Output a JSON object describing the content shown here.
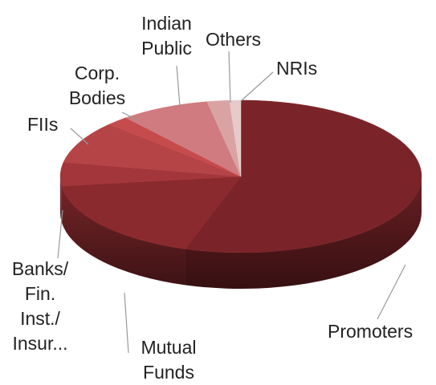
{
  "chart_data": {
    "type": "pie3d",
    "categories": [
      "Promoters",
      "Mutual Funds",
      "Banks/ Fin. Inst./ Insur...",
      "FIIs",
      "Corp. Bodies",
      "Indian Public",
      "Others",
      "NRIs"
    ],
    "values": [
      55,
      18,
      5,
      9,
      2,
      8,
      2,
      1
    ],
    "colors": [
      "#7a2429",
      "#8a2a2f",
      "#a3363a",
      "#b44446",
      "#c54b4d",
      "#cf7b7f",
      "#d9a3a4",
      "#e6c9c9"
    ]
  }
}
